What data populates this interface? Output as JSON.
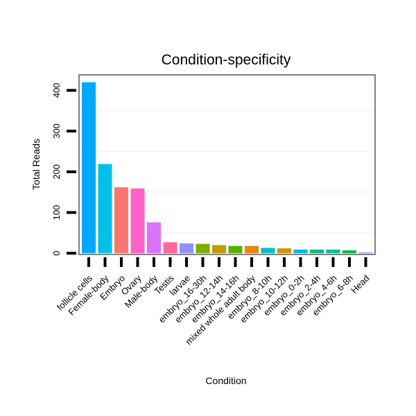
{
  "chart_data": {
    "type": "bar",
    "title": "Condition-specificity",
    "xlabel": "Condition",
    "ylabel": "Total Reads",
    "ylim": [
      -3,
      438
    ],
    "yticks": [
      0,
      100,
      200,
      300,
      400
    ],
    "categories": [
      "follicle cells",
      "Female-body",
      "Embryo",
      "Ovary",
      "Male-body",
      "Testis",
      "larvae",
      "embryo_16-30h",
      "embryo_12-14h",
      "embryo_14-16h",
      "mixed whole adult body",
      "embryo_8-10h",
      "embryo_10-12h",
      "embryo_0-2h",
      "embryo_2-4h",
      "embryo_4-6h",
      "embryo_6-8h",
      "Head"
    ],
    "values": [
      420,
      219,
      162,
      159,
      76,
      27,
      24,
      23,
      20,
      18,
      18,
      13,
      12,
      9,
      9,
      9,
      7,
      2
    ],
    "colors": [
      "#00a9ff",
      "#00c0e8",
      "#f8766d",
      "#ff61c9",
      "#db72fb",
      "#ff689f",
      "#8f91ff",
      "#7cae00",
      "#c49a00",
      "#53b400",
      "#e68613",
      "#00bfc4",
      "#d89000",
      "#00b4f0",
      "#00bf7d",
      "#00c19a",
      "#00ba38",
      "#619cff"
    ]
  }
}
